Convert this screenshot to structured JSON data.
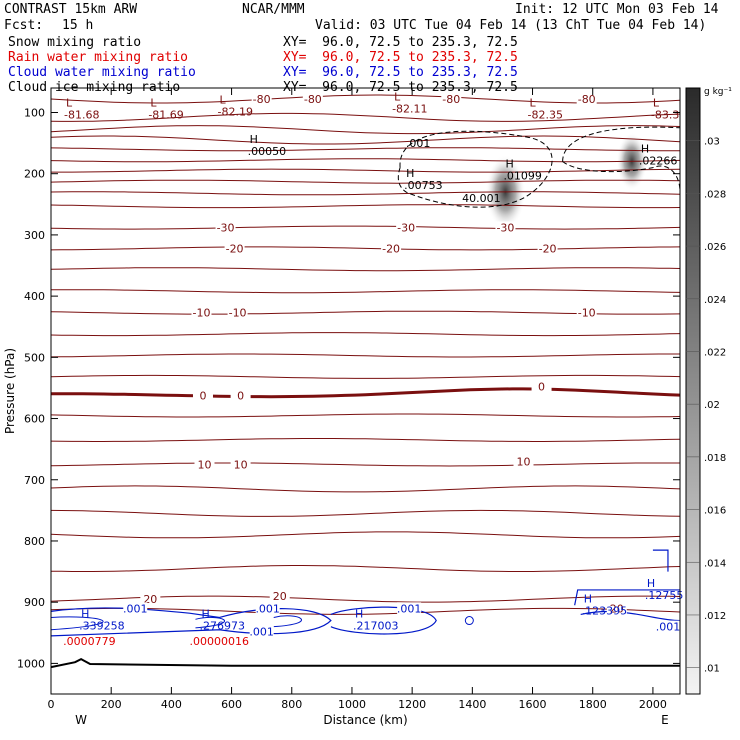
{
  "header": {
    "model": "CONTRAST 15km ARW",
    "org": "NCAR/MMM",
    "init": "Init: 12 UTC Mon 03 Feb 14",
    "fcst_label": "Fcst:",
    "fcst_value": "15 h",
    "valid": "Valid: 03 UTC Tue 04 Feb 14 (13 ChT Tue 04 Feb 14)"
  },
  "fields": [
    {
      "name": "Snow mixing ratio",
      "xy": "XY=  96.0, 72.5 to 235.3, 72.5",
      "color": "#000000"
    },
    {
      "name": "Rain water mixing ratio",
      "xy": "XY=  96.0, 72.5 to 235.3, 72.5",
      "color": "#e00000"
    },
    {
      "name": "Cloud water mixing ratio",
      "xy": "XY=  96.0, 72.5 to 235.3, 72.5",
      "color": "#0000d0"
    },
    {
      "name": "Cloud ice mixing ratio",
      "xy": "XY=  96.0, 72.5 to 235.3, 72.5",
      "color": "#000000"
    }
  ],
  "chart_data": {
    "type": "contour",
    "title": "",
    "xlabel": "Distance (km)",
    "ylabel": "Pressure (hPa)",
    "xlim": [
      0,
      2090
    ],
    "ylim": [
      1050,
      60
    ],
    "x_ticks": [
      0,
      200,
      400,
      600,
      800,
      1000,
      1200,
      1400,
      1600,
      1800,
      2000
    ],
    "x_tick_labels": [
      "0",
      "200",
      "400",
      "600",
      "800",
      "1000",
      "1200",
      "1400",
      "1600",
      "1800",
      "2000"
    ],
    "y_ticks": [
      100,
      200,
      300,
      400,
      500,
      600,
      700,
      800,
      900,
      1000
    ],
    "y_tick_labels": [
      "100",
      "200",
      "300",
      "400",
      "500",
      "600",
      "700",
      "800",
      "900",
      "1000"
    ],
    "x_end_labels": {
      "left": "W",
      "right": "E"
    },
    "colorbar": {
      "units": "g kg⁻¹",
      "ticks": [
        0.01,
        0.012,
        0.014,
        0.016,
        0.018,
        0.02,
        0.022,
        0.024,
        0.026,
        0.028,
        0.03
      ],
      "tick_labels": [
        ".01",
        ".012",
        ".014",
        ".016",
        ".018",
        ".02",
        ".022",
        ".024",
        ".026",
        ".028",
        ".03"
      ],
      "range": [
        0.009,
        0.032
      ]
    },
    "temperature_contours": {
      "pressures": [
        78,
        108,
        128,
        145,
        160,
        178,
        195,
        213,
        232,
        253,
        288,
        322,
        356,
        392,
        427,
        462,
        497,
        532,
        562,
        595,
        635,
        675,
        715,
        755,
        790,
        845,
        895,
        915
      ],
      "zero_isotherm_hPa": 562,
      "bold_pressure_hPa": 562,
      "labels": [
        {
          "text": "-80",
          "x": 700,
          "p": 78
        },
        {
          "text": "-80",
          "x": 870,
          "p": 78
        },
        {
          "text": "-80",
          "x": 1330,
          "p": 78
        },
        {
          "text": "-80",
          "x": 1780,
          "p": 78
        },
        {
          "text": "-30",
          "x": 580,
          "p": 288
        },
        {
          "text": "-30",
          "x": 1180,
          "p": 288
        },
        {
          "text": "-30",
          "x": 1510,
          "p": 288
        },
        {
          "text": "-20",
          "x": 610,
          "p": 322
        },
        {
          "text": "-20",
          "x": 1130,
          "p": 322
        },
        {
          "text": "-20",
          "x": 1650,
          "p": 322
        },
        {
          "text": "-10",
          "x": 500,
          "p": 427
        },
        {
          "text": "-10",
          "x": 620,
          "p": 427
        },
        {
          "text": "-10",
          "x": 1780,
          "p": 427
        },
        {
          "text": "0",
          "x": 505,
          "p": 562
        },
        {
          "text": "0",
          "x": 630,
          "p": 562
        },
        {
          "text": "0",
          "x": 1630,
          "p": 548
        },
        {
          "text": "10",
          "x": 510,
          "p": 675
        },
        {
          "text": "10",
          "x": 630,
          "p": 675
        },
        {
          "text": "10",
          "x": 1570,
          "p": 670
        },
        {
          "text": "20",
          "x": 330,
          "p": 895
        },
        {
          "text": "20",
          "x": 760,
          "p": 890
        },
        {
          "text": "20",
          "x": 1880,
          "p": 910
        }
      ]
    },
    "extrema_labels": [
      {
        "marker": "L",
        "value": "-81.68",
        "x": 50,
        "p": 100
      },
      {
        "marker": "L",
        "value": "-81.69",
        "x": 330,
        "p": 100
      },
      {
        "marker": "L",
        "value": "-82.19",
        "x": 560,
        "p": 95
      },
      {
        "marker": "L",
        "value": "-82.11",
        "x": 1140,
        "p": 90
      },
      {
        "marker": "L",
        "value": "-82.35",
        "x": 1590,
        "p": 100
      },
      {
        "marker": "L",
        "value": "-83.3",
        "x": 2000,
        "p": 100
      },
      {
        "marker": "H",
        "value": ".00050",
        "x": 660,
        "p": 160
      },
      {
        "marker": "H",
        "value": ".01099",
        "x": 1510,
        "p": 200
      },
      {
        "marker": "H",
        "value": ".00753",
        "x": 1180,
        "p": 215
      },
      {
        "marker": "H",
        "value": ".02266",
        "x": 1960,
        "p": 175
      },
      {
        "marker": "H",
        "value": ".12755",
        "x": 1980,
        "p": 885
      },
      {
        "marker": "H",
        "value": ".123395",
        "x": 1770,
        "p": 910
      },
      {
        "marker": "H",
        "value": ".339258",
        "x": 100,
        "p": 935
      },
      {
        "marker": "H",
        "value": ".276973",
        "x": 500,
        "p": 935
      },
      {
        "marker": "H",
        "value": ".217003",
        "x": 1010,
        "p": 935
      }
    ],
    "rain_labels": [
      {
        "value": ".0000779",
        "x": 100,
        "p": 960
      },
      {
        "value": ".00000016",
        "x": 520,
        "p": 960
      }
    ],
    "cloud_water_labels": [
      {
        "value": ".001",
        "x": 280,
        "p": 910
      },
      {
        "value": ".001",
        "x": 720,
        "p": 910
      },
      {
        "value": ".001",
        "x": 700,
        "p": 948
      },
      {
        "value": ".001",
        "x": 1190,
        "p": 910
      },
      {
        "value": ".001",
        "x": 2050,
        "p": 940
      }
    ],
    "ice_labels": [
      {
        "value": ".001",
        "x": 1220,
        "p": 150
      },
      {
        "value": "40.001",
        "x": 1430,
        "p": 240
      }
    ],
    "snow_shading": [
      {
        "x": 1510,
        "p": 230,
        "value": 0.031
      },
      {
        "x": 1930,
        "p": 180,
        "value": 0.02
      }
    ],
    "surface": {
      "x": [
        0,
        80,
        100,
        130,
        600,
        1200,
        1800,
        2090
      ],
      "p": [
        1006,
        998,
        993,
        1001,
        1004,
        1004,
        1004,
        1004
      ]
    }
  }
}
